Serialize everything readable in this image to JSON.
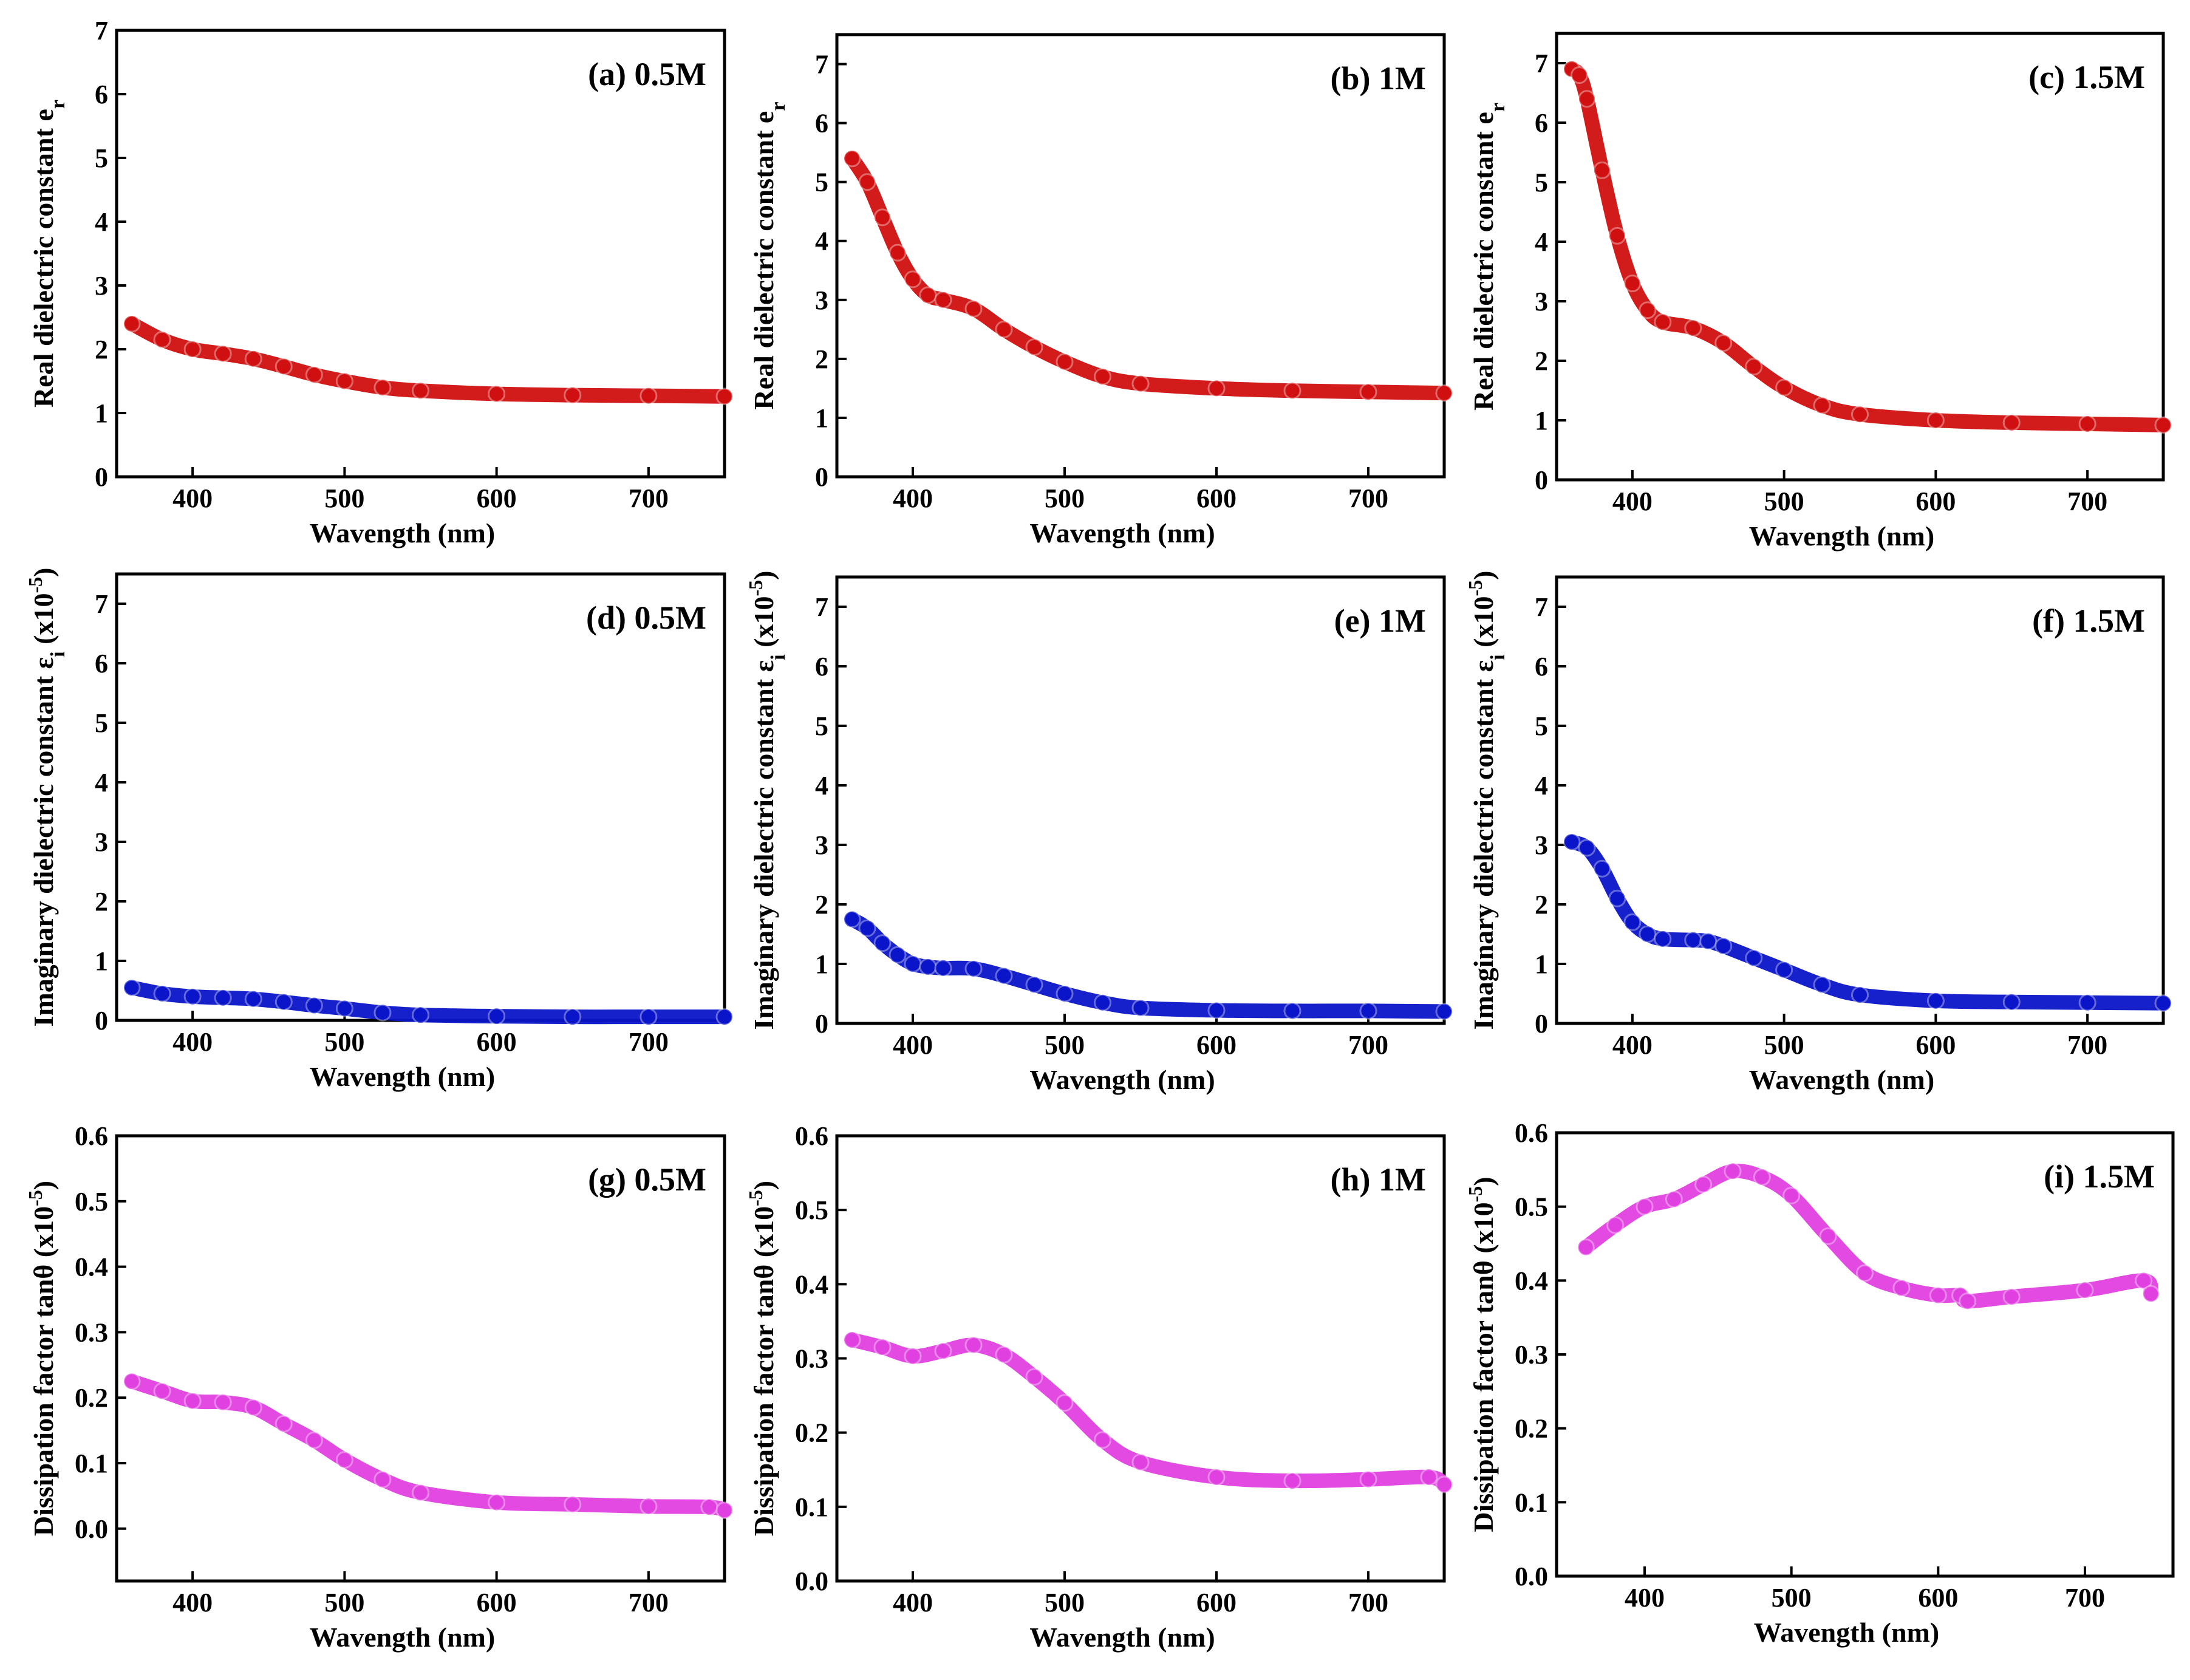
{
  "figure": {
    "xlabel": "Wavength (nm)",
    "x_ticks": [
      400,
      500,
      600,
      700
    ],
    "colors": {
      "real": "#d01010",
      "imag": "#0a14c8",
      "diss": "#e040e0"
    }
  },
  "chart_data": [
    {
      "type": "line",
      "title": "(a) 0.5M",
      "xlabel": "Wavength (nm)",
      "ylabel": "Real dielectric constant e",
      "ylabel_sub": "r",
      "ylabel_suffix": "",
      "color_key": "real",
      "xlim": [
        350,
        750
      ],
      "ylim": [
        0,
        7
      ],
      "yticks": [
        0,
        1,
        2,
        3,
        4,
        5,
        6,
        7
      ],
      "tick_decimals": 0,
      "series": [
        {
          "name": "0.5M",
          "x": [
            360,
            380,
            400,
            420,
            440,
            460,
            480,
            500,
            525,
            550,
            600,
            650,
            700,
            750
          ],
          "y": [
            2.4,
            2.15,
            2.0,
            1.93,
            1.85,
            1.73,
            1.6,
            1.5,
            1.4,
            1.35,
            1.3,
            1.28,
            1.27,
            1.26
          ]
        }
      ]
    },
    {
      "type": "line",
      "title": "(b) 1M",
      "xlabel": "Wavength (nm)",
      "ylabel": "Real dielectric constant e",
      "ylabel_sub": "r",
      "ylabel_suffix": "",
      "color_key": "real",
      "xlim": [
        350,
        750
      ],
      "ylim": [
        0,
        7.5
      ],
      "yticks": [
        0,
        1,
        2,
        3,
        4,
        5,
        6,
        7
      ],
      "tick_decimals": 0,
      "series": [
        {
          "name": "1M",
          "x": [
            360,
            370,
            380,
            390,
            400,
            410,
            420,
            440,
            460,
            480,
            500,
            525,
            550,
            600,
            650,
            700,
            750
          ],
          "y": [
            5.4,
            5.0,
            4.4,
            3.8,
            3.35,
            3.08,
            3.0,
            2.85,
            2.5,
            2.2,
            1.95,
            1.7,
            1.58,
            1.5,
            1.46,
            1.44,
            1.42
          ]
        }
      ]
    },
    {
      "type": "line",
      "title": "(c) 1.5M",
      "xlabel": "Wavength (nm)",
      "ylabel": "Real dielectric constant e",
      "ylabel_sub": "r",
      "ylabel_suffix": "",
      "color_key": "real",
      "xlim": [
        350,
        750
      ],
      "ylim": [
        0,
        7.5
      ],
      "yticks": [
        0,
        1,
        2,
        3,
        4,
        5,
        6,
        7
      ],
      "tick_decimals": 0,
      "series": [
        {
          "name": "1.5M",
          "x": [
            360,
            365,
            370,
            380,
            390,
            400,
            410,
            420,
            440,
            460,
            480,
            500,
            525,
            550,
            600,
            650,
            700,
            750
          ],
          "y": [
            6.9,
            6.8,
            6.4,
            5.2,
            4.1,
            3.3,
            2.85,
            2.65,
            2.55,
            2.3,
            1.9,
            1.55,
            1.25,
            1.1,
            1.0,
            0.96,
            0.94,
            0.92
          ]
        }
      ]
    },
    {
      "type": "line",
      "title": "(d) 0.5M",
      "xlabel": "Wavength (nm)",
      "ylabel": "Imaginary dielectric constant ε",
      "ylabel_sub": "i",
      "ylabel_suffix": " (x10",
      "ylabel_sup": "-5",
      "ylabel_close": ")",
      "color_key": "imag",
      "xlim": [
        350,
        750
      ],
      "ylim": [
        0,
        7.5
      ],
      "yticks": [
        0,
        1,
        2,
        3,
        4,
        5,
        6,
        7
      ],
      "tick_decimals": 0,
      "series": [
        {
          "name": "0.5M",
          "x": [
            360,
            380,
            400,
            420,
            440,
            460,
            480,
            500,
            525,
            550,
            600,
            650,
            700,
            750
          ],
          "y": [
            0.55,
            0.45,
            0.4,
            0.38,
            0.36,
            0.31,
            0.25,
            0.2,
            0.13,
            0.09,
            0.07,
            0.06,
            0.06,
            0.06
          ]
        }
      ]
    },
    {
      "type": "line",
      "title": "(e) 1M",
      "xlabel": "Wavength (nm)",
      "ylabel": "Imaginary dielectric constant ε",
      "ylabel_sub": "i",
      "ylabel_suffix": " (x10",
      "ylabel_sup": "-5",
      "ylabel_close": ")",
      "color_key": "imag",
      "xlim": [
        350,
        750
      ],
      "ylim": [
        0,
        7.5
      ],
      "yticks": [
        0,
        1,
        2,
        3,
        4,
        5,
        6,
        7
      ],
      "tick_decimals": 0,
      "series": [
        {
          "name": "1M",
          "x": [
            360,
            370,
            380,
            390,
            400,
            410,
            420,
            440,
            460,
            480,
            500,
            525,
            550,
            600,
            650,
            700,
            750
          ],
          "y": [
            1.75,
            1.6,
            1.35,
            1.15,
            1.0,
            0.95,
            0.93,
            0.92,
            0.8,
            0.65,
            0.5,
            0.35,
            0.26,
            0.22,
            0.21,
            0.21,
            0.2
          ]
        }
      ]
    },
    {
      "type": "line",
      "title": "(f) 1.5M",
      "xlabel": "Wavength (nm)",
      "ylabel": "Imaginary dielectric constant ε",
      "ylabel_sub": "i",
      "ylabel_suffix": " (x10",
      "ylabel_sup": "-5",
      "ylabel_close": ")",
      "color_key": "imag",
      "xlim": [
        350,
        750
      ],
      "ylim": [
        0,
        7.5
      ],
      "yticks": [
        0,
        1,
        2,
        3,
        4,
        5,
        6,
        7
      ],
      "tick_decimals": 0,
      "series": [
        {
          "name": "1.5M",
          "x": [
            360,
            370,
            380,
            390,
            400,
            410,
            420,
            440,
            450,
            460,
            480,
            500,
            525,
            550,
            600,
            650,
            700,
            750
          ],
          "y": [
            3.05,
            2.95,
            2.6,
            2.1,
            1.7,
            1.5,
            1.42,
            1.4,
            1.38,
            1.3,
            1.1,
            0.9,
            0.65,
            0.48,
            0.38,
            0.36,
            0.35,
            0.34
          ]
        }
      ]
    },
    {
      "type": "line",
      "title": "(g) 0.5M",
      "xlabel": "Wavength (nm)",
      "ylabel": "Dissipation factor tanθ",
      "ylabel_sub": "",
      "ylabel_suffix": " (x10",
      "ylabel_sup": "-5",
      "ylabel_close": ")",
      "color_key": "diss",
      "xlim": [
        350,
        750
      ],
      "ylim": [
        -0.08,
        0.6
      ],
      "yticks": [
        0.0,
        0.1,
        0.2,
        0.3,
        0.4,
        0.5,
        0.6
      ],
      "tick_decimals": 1,
      "series": [
        {
          "name": "0.5M",
          "x": [
            360,
            380,
            400,
            420,
            440,
            460,
            480,
            500,
            525,
            550,
            600,
            650,
            700,
            740,
            750
          ],
          "y": [
            0.225,
            0.21,
            0.195,
            0.193,
            0.185,
            0.16,
            0.135,
            0.105,
            0.075,
            0.055,
            0.04,
            0.037,
            0.034,
            0.033,
            0.028
          ]
        }
      ]
    },
    {
      "type": "line",
      "title": "(h) 1M",
      "xlabel": "Wavength (nm)",
      "ylabel": "Dissipation factor tanθ",
      "ylabel_sub": "",
      "ylabel_suffix": " (x10",
      "ylabel_sup": "-5",
      "ylabel_close": ")",
      "color_key": "diss",
      "xlim": [
        350,
        750
      ],
      "ylim": [
        0,
        0.6
      ],
      "yticks": [
        0.0,
        0.1,
        0.2,
        0.3,
        0.4,
        0.5,
        0.6
      ],
      "tick_decimals": 1,
      "series": [
        {
          "name": "1M",
          "x": [
            360,
            380,
            400,
            420,
            440,
            460,
            480,
            500,
            525,
            550,
            600,
            650,
            700,
            740,
            750
          ],
          "y": [
            0.325,
            0.315,
            0.303,
            0.31,
            0.318,
            0.305,
            0.275,
            0.24,
            0.19,
            0.16,
            0.14,
            0.135,
            0.137,
            0.14,
            0.13
          ]
        }
      ]
    },
    {
      "type": "line",
      "title": "(i) 1.5M",
      "xlabel": "Wavength (nm)",
      "ylabel": "Dissipation factor tanθ",
      "ylabel_sub": "",
      "ylabel_suffix": " (x10",
      "ylabel_sup": "-5",
      "ylabel_close": ")",
      "color_key": "diss",
      "xlim": [
        340,
        760
      ],
      "ylim": [
        0,
        0.6
      ],
      "yticks": [
        0.0,
        0.1,
        0.2,
        0.3,
        0.4,
        0.5,
        0.6
      ],
      "tick_decimals": 1,
      "series": [
        {
          "name": "1.5M",
          "x": [
            360,
            380,
            400,
            420,
            440,
            460,
            480,
            500,
            525,
            550,
            575,
            600,
            615,
            620,
            650,
            700,
            740,
            745
          ],
          "y": [
            0.445,
            0.475,
            0.5,
            0.51,
            0.53,
            0.548,
            0.54,
            0.515,
            0.46,
            0.41,
            0.39,
            0.38,
            0.38,
            0.372,
            0.378,
            0.387,
            0.4,
            0.382
          ]
        }
      ]
    }
  ]
}
